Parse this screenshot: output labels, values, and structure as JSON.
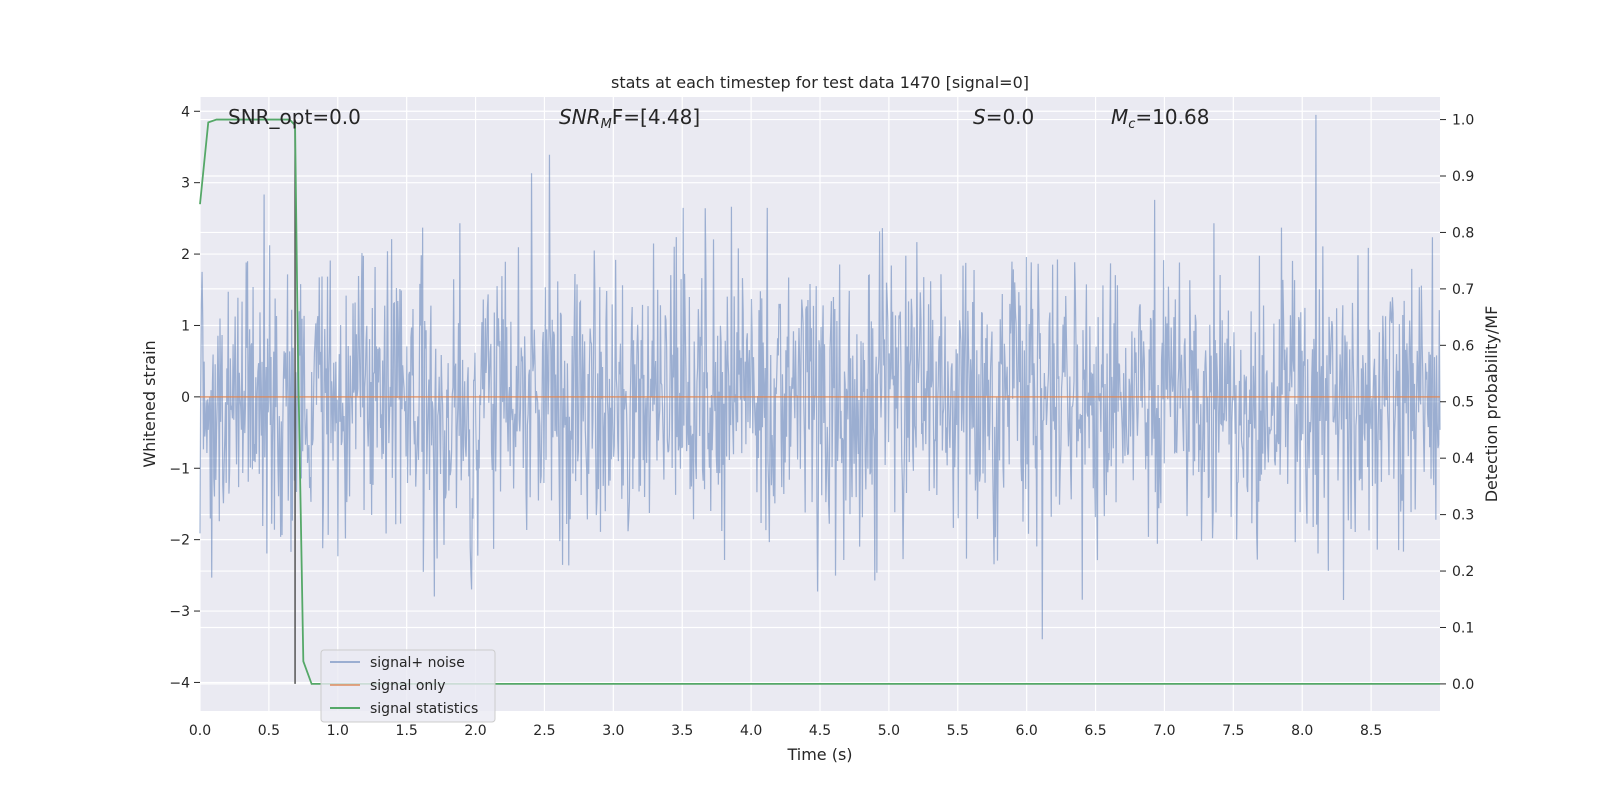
{
  "chart_data": {
    "type": "line",
    "title": "stats at each timestep for test data 1470 [signal=0]",
    "xlabel": "Time (s)",
    "ylabel": "Whitened strain",
    "y2label": "Detection probability/MF",
    "xlim": [
      0,
      9.0
    ],
    "ylim": [
      -4.4,
      4.2
    ],
    "y2lim": [
      -0.048,
      1.04
    ],
    "x_ticks": [
      "0.0",
      "0.5",
      "1.0",
      "1.5",
      "2.0",
      "2.5",
      "3.0",
      "3.5",
      "4.0",
      "4.5",
      "5.0",
      "5.5",
      "6.0",
      "6.5",
      "7.0",
      "7.5",
      "8.0",
      "8.5"
    ],
    "y_ticks": [
      "4",
      "3",
      "2",
      "1",
      "0",
      "−1",
      "−2",
      "−3",
      "−4"
    ],
    "y2_ticks": [
      "1.0",
      "0.9",
      "0.8",
      "0.7",
      "0.6",
      "0.5",
      "0.4",
      "0.3",
      "0.2",
      "0.1",
      "0.0"
    ],
    "grid": true,
    "legend_position": "lower-left",
    "annotations": {
      "snr_opt": "SNR_opt=0.0",
      "snr_mf_base": "SNR",
      "snr_mf_sub": "M",
      "snr_mf_rest": "F=[4.48]",
      "s_var": "S",
      "s_rest": "=0.0",
      "mc_var": "M",
      "mc_sub": "c",
      "mc_rest": "=10.68"
    },
    "vertical_marker_x": 0.69,
    "series": [
      {
        "name": "signal+ noise",
        "color": "#4c72b0",
        "kind": "noise",
        "n_points": 1800,
        "sigma": 1.0
      },
      {
        "name": "signal only",
        "color": "#dd8452",
        "x": [
          0,
          9.0
        ],
        "y": [
          0,
          0
        ]
      },
      {
        "name": "signal statistics",
        "color": "#55a868",
        "axis": "right",
        "x": [
          0,
          0.06,
          0.12,
          0.3,
          0.5,
          0.65,
          0.69,
          0.71,
          0.75,
          0.81,
          1.0,
          2.0,
          4.0,
          6.0,
          8.0,
          9.0
        ],
        "y": [
          0.85,
          0.995,
          1.0,
          1.0,
          1.0,
          1.0,
          0.99,
          0.6,
          0.04,
          0.0,
          0.0,
          0.0,
          0.0,
          0.0,
          0.0,
          0.0
        ]
      }
    ]
  }
}
